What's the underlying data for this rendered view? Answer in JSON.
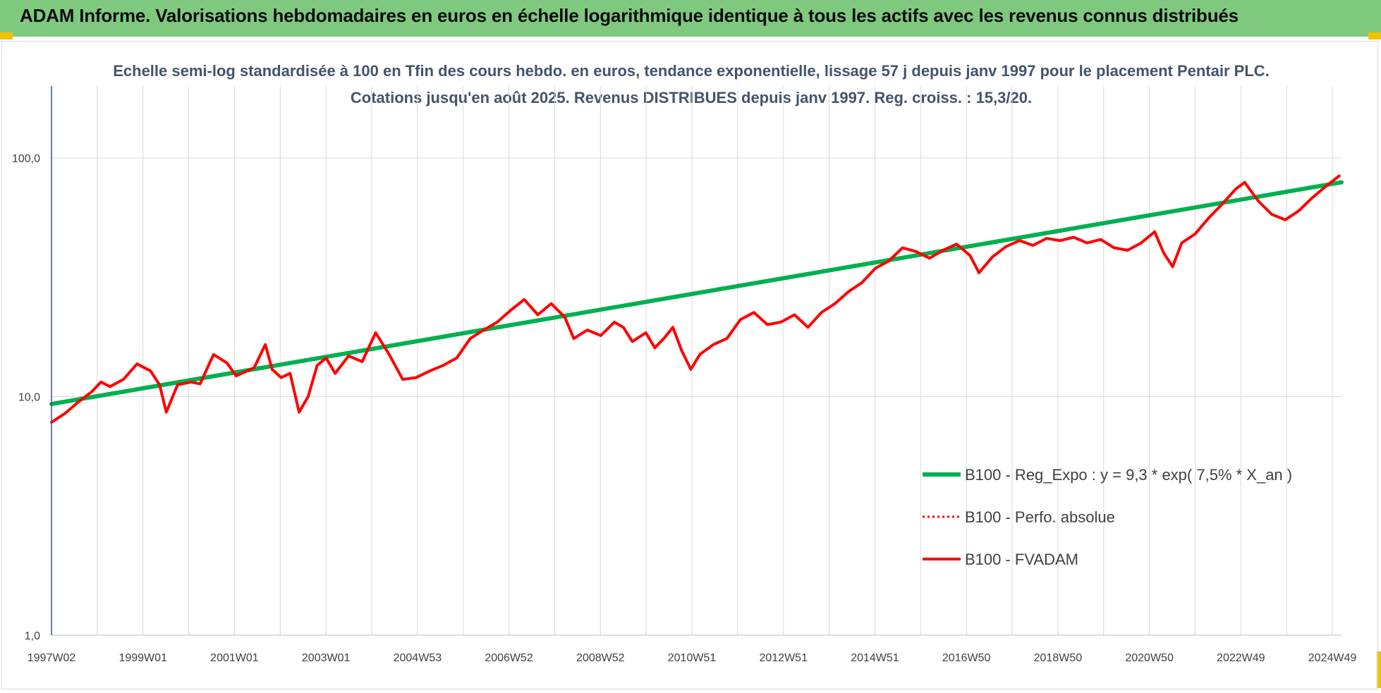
{
  "header": {
    "title": "ADAM Informe. Valorisations hebdomadaires en euros en échelle logarithmique identique à tous les actifs avec les revenus connus distribués"
  },
  "colors": {
    "banner": "#7fc97f",
    "regression_series": "#00b050",
    "price_series": "#ff0000",
    "grid": "#d9d9d9",
    "subtitle": "#44546a"
  },
  "chart_data": {
    "type": "line",
    "title": "Echelle semi-log standardisée à 100 en Tfin des cours hebdo. en euros, tendance exponentielle, lissage 57 j depuis janv 1997 pour le placement Pentair PLC. Cotations jusqu'en août 2025. Revenus DISTRIBUES depuis janv 1997. Reg. croiss. : 15,3/20.",
    "y_scale": "log",
    "ylim": [
      1,
      200
    ],
    "y_ticks": [
      "1,0",
      "10,0",
      "100,0"
    ],
    "x_ticks": [
      "1997W02",
      "1999W01",
      "2001W01",
      "2003W01",
      "2004W53",
      "2006W52",
      "2008W52",
      "2010W51",
      "2012W51",
      "2014W51",
      "2016W50",
      "2018W50",
      "2020W50",
      "2022W49",
      "2024W49"
    ],
    "xlim": [
      1997.0,
      2025.65
    ],
    "grid": true,
    "legend_position": "bottom-right",
    "legend": [
      "B100 - Reg_Expo : y = 9,3 * exp( 7,5% *  X_an )",
      "B100 - Perfo. absolue",
      "B100 - FVADAM"
    ],
    "series": [
      {
        "name": "B100 - Reg_Expo : y = 9,3 * exp( 7,5% *  X_an )",
        "style": "line",
        "points": [
          [
            1997.0,
            9.3
          ],
          [
            2025.65,
            79
          ]
        ]
      },
      {
        "name": "B100 - Perfo. absolue",
        "style": "dotted",
        "points": []
      },
      {
        "name": "B100 - FVADAM",
        "style": "line",
        "points": [
          [
            1997.0,
            7.8
          ],
          [
            1997.3,
            8.5
          ],
          [
            1997.6,
            9.5
          ],
          [
            1997.9,
            10.5
          ],
          [
            1998.1,
            11.5
          ],
          [
            1998.3,
            11.0
          ],
          [
            1998.6,
            11.8
          ],
          [
            1998.9,
            13.7
          ],
          [
            1999.2,
            12.8
          ],
          [
            1999.4,
            11.2
          ],
          [
            1999.55,
            8.6
          ],
          [
            1999.8,
            11.2
          ],
          [
            2000.1,
            11.5
          ],
          [
            2000.3,
            11.3
          ],
          [
            2000.6,
            15.0
          ],
          [
            2000.9,
            13.8
          ],
          [
            2001.1,
            12.2
          ],
          [
            2001.5,
            13.2
          ],
          [
            2001.75,
            16.5
          ],
          [
            2001.9,
            13.0
          ],
          [
            2002.1,
            12.0
          ],
          [
            2002.3,
            12.5
          ],
          [
            2002.5,
            8.6
          ],
          [
            2002.7,
            10.0
          ],
          [
            2002.9,
            13.5
          ],
          [
            2003.1,
            14.5
          ],
          [
            2003.3,
            12.5
          ],
          [
            2003.6,
            14.8
          ],
          [
            2003.9,
            14.0
          ],
          [
            2004.2,
            18.5
          ],
          [
            2004.5,
            15.0
          ],
          [
            2004.8,
            11.8
          ],
          [
            2005.1,
            12.0
          ],
          [
            2005.4,
            12.8
          ],
          [
            2005.7,
            13.5
          ],
          [
            2006.0,
            14.5
          ],
          [
            2006.3,
            17.5
          ],
          [
            2006.6,
            19.0
          ],
          [
            2006.9,
            20.5
          ],
          [
            2007.2,
            23.0
          ],
          [
            2007.5,
            25.5
          ],
          [
            2007.8,
            22.0
          ],
          [
            2008.1,
            24.5
          ],
          [
            2008.4,
            21.5
          ],
          [
            2008.6,
            17.5
          ],
          [
            2008.9,
            19.0
          ],
          [
            2009.2,
            18.0
          ],
          [
            2009.5,
            20.5
          ],
          [
            2009.7,
            19.5
          ],
          [
            2009.9,
            17.0
          ],
          [
            2010.2,
            18.5
          ],
          [
            2010.4,
            16.0
          ],
          [
            2010.6,
            17.5
          ],
          [
            2010.8,
            19.5
          ],
          [
            2011.0,
            15.5
          ],
          [
            2011.2,
            13.0
          ],
          [
            2011.4,
            15.0
          ],
          [
            2011.7,
            16.5
          ],
          [
            2012.0,
            17.5
          ],
          [
            2012.3,
            21.0
          ],
          [
            2012.6,
            22.5
          ],
          [
            2012.9,
            20.0
          ],
          [
            2013.2,
            20.5
          ],
          [
            2013.5,
            22.0
          ],
          [
            2013.8,
            19.5
          ],
          [
            2014.1,
            22.5
          ],
          [
            2014.4,
            24.5
          ],
          [
            2014.7,
            27.5
          ],
          [
            2015.0,
            30.0
          ],
          [
            2015.3,
            34.5
          ],
          [
            2015.6,
            37.0
          ],
          [
            2015.9,
            42.0
          ],
          [
            2016.2,
            40.5
          ],
          [
            2016.5,
            38.0
          ],
          [
            2016.8,
            41.0
          ],
          [
            2017.1,
            43.5
          ],
          [
            2017.4,
            39.0
          ],
          [
            2017.6,
            33.0
          ],
          [
            2017.9,
            38.5
          ],
          [
            2018.2,
            42.5
          ],
          [
            2018.5,
            45.0
          ],
          [
            2018.8,
            43.0
          ],
          [
            2019.1,
            46.0
          ],
          [
            2019.4,
            45.0
          ],
          [
            2019.7,
            46.5
          ],
          [
            2020.0,
            44.0
          ],
          [
            2020.3,
            45.5
          ],
          [
            2020.6,
            42.0
          ],
          [
            2020.9,
            41.0
          ],
          [
            2021.2,
            44.0
          ],
          [
            2021.5,
            49.0
          ],
          [
            2021.7,
            40.0
          ],
          [
            2021.9,
            35.0
          ],
          [
            2022.1,
            44.0
          ],
          [
            2022.4,
            48.0
          ],
          [
            2022.7,
            56.0
          ],
          [
            2023.0,
            64.0
          ],
          [
            2023.3,
            74.0
          ],
          [
            2023.5,
            79.0
          ],
          [
            2023.8,
            66.0
          ],
          [
            2024.1,
            58.0
          ],
          [
            2024.4,
            55.0
          ],
          [
            2024.7,
            60.0
          ],
          [
            2025.0,
            68.0
          ],
          [
            2025.3,
            76.0
          ],
          [
            2025.6,
            84.0
          ]
        ]
      }
    ]
  }
}
